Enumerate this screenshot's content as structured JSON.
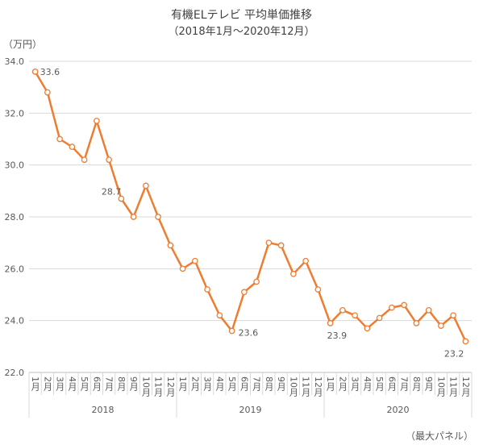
{
  "chart_data": {
    "type": "line",
    "title": "有機ELテレビ 平均単価推移",
    "subtitle": "（2018年1月～2020年12月）",
    "ylabel": "（万円）",
    "note": "（最大パネル）",
    "ylim": [
      22.0,
      34.0
    ],
    "yticks": [
      "22.0",
      "24.0",
      "26.0",
      "28.0",
      "30.0",
      "32.0",
      "34.0"
    ],
    "grid": true,
    "color": "#ED7D31",
    "years": [
      "2018",
      "2019",
      "2020"
    ],
    "months": [
      "1月",
      "2月",
      "3月",
      "4月",
      "5月",
      "6月",
      "7月",
      "8月",
      "9月",
      "10月",
      "11月",
      "12月"
    ],
    "values": [
      33.6,
      32.8,
      31.0,
      30.7,
      30.2,
      31.7,
      30.2,
      28.7,
      28.0,
      29.2,
      28.0,
      26.9,
      26.0,
      26.3,
      25.2,
      24.2,
      23.6,
      25.1,
      25.5,
      27.0,
      26.9,
      25.8,
      26.3,
      25.2,
      23.9,
      24.4,
      24.2,
      23.7,
      24.1,
      24.5,
      24.6,
      23.9,
      24.4,
      23.8,
      24.2,
      23.2
    ],
    "data_labels": [
      {
        "index": 0,
        "text": "33.6"
      },
      {
        "index": 7,
        "text": "28.7"
      },
      {
        "index": 16,
        "text": "23.6"
      },
      {
        "index": 24,
        "text": "23.9"
      },
      {
        "index": 35,
        "text": "23.2"
      }
    ]
  }
}
